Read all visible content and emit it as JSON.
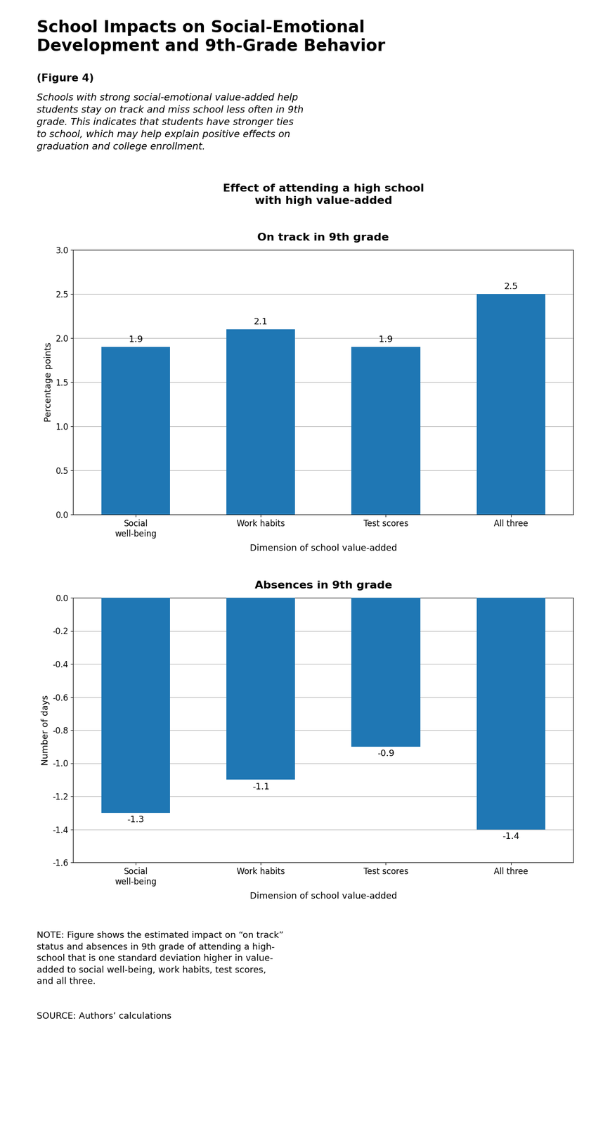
{
  "title": "School Impacts on Social-Emotional\nDevelopment and 9th-Grade Behavior",
  "subtitle": "Schools with strong social-emotional value-added help\nstudents stay on track and miss school less often in 9th\ngrade. This indicates that students have stronger ties\nto school, which may help explain positive effects on\ngraduation and college enrollment.",
  "annotations": [
    "(Figure 4)",
    "Effect of attending a high school\nwith high value-added",
    "NOTE: Figure shows the estimated impact on “on track”\nstatus and absences in 9th grade of attending a high-\nschool that is one standard deviation higher in value-\nadded to social well-being, work habits, test scores,\nand all three.",
    "SOURCE: Authors’ calculations"
  ],
  "chart_data": [
    {
      "type": "bar",
      "title": "On track in 9th grade",
      "categories": [
        "Social\nwell-being",
        "Work habits",
        "Test scores",
        "All three"
      ],
      "values": [
        1.9,
        2.1,
        1.9,
        2.5
      ],
      "ylabel": "Percentage points",
      "xlabel": "Dimension of school value-added",
      "ylim": [
        0.0,
        3.0
      ],
      "yticks": [
        0.0,
        0.5,
        1.0,
        1.5,
        2.0,
        2.5,
        3.0
      ],
      "grid": true,
      "data_labels": true
    },
    {
      "type": "bar",
      "title": "Absences in 9th grade",
      "categories": [
        "Social\nwell-being",
        "Work habits",
        "Test scores",
        "All three"
      ],
      "values": [
        -1.3,
        -1.1,
        -0.9,
        -1.4
      ],
      "ylabel": "Number of days",
      "xlabel": "Dimension of school value-added",
      "ylim": [
        -1.6,
        0.0
      ],
      "yticks": [
        -1.6,
        -1.4,
        -1.2,
        -1.0,
        -0.8,
        -0.6,
        -0.4,
        -0.2,
        0.0
      ],
      "grid": true,
      "data_labels": true
    }
  ]
}
